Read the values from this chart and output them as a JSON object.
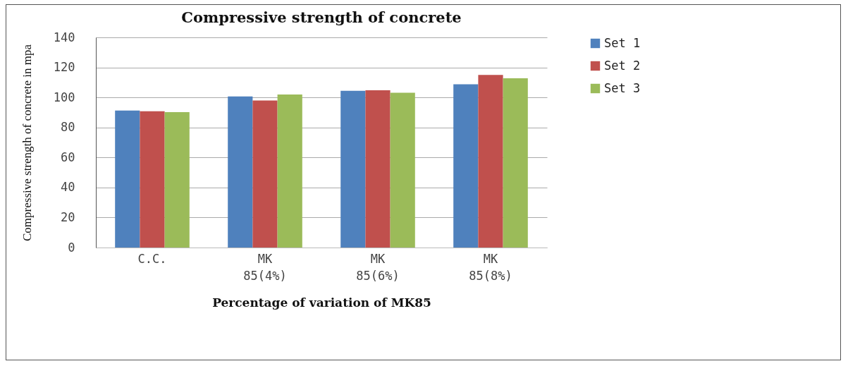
{
  "chart_data": {
    "type": "bar",
    "title": "Compressive strength of concrete",
    "xlabel": "Percentage of variation of MK85",
    "ylabel": "Compressive strength of concrete in mpa",
    "categories": [
      "C.C.",
      "MK 85(4%)",
      "MK 85(6%)",
      "MK 85(8%)"
    ],
    "series": [
      {
        "name": "Set 1",
        "color": "#4f81bd",
        "values": [
          91.2,
          100.7,
          104.4,
          108.7
        ]
      },
      {
        "name": "Set 2",
        "color": "#c0504d",
        "values": [
          90.8,
          97.9,
          104.8,
          115
        ]
      },
      {
        "name": "Set 3",
        "color": "#9bbb59",
        "values": [
          90.2,
          102,
          103.1,
          112.8
        ]
      }
    ],
    "ylim": [
      0,
      140
    ],
    "yticks": [
      0,
      20,
      40,
      60,
      80,
      100,
      120,
      140
    ],
    "grid": "y",
    "legend": "right"
  }
}
